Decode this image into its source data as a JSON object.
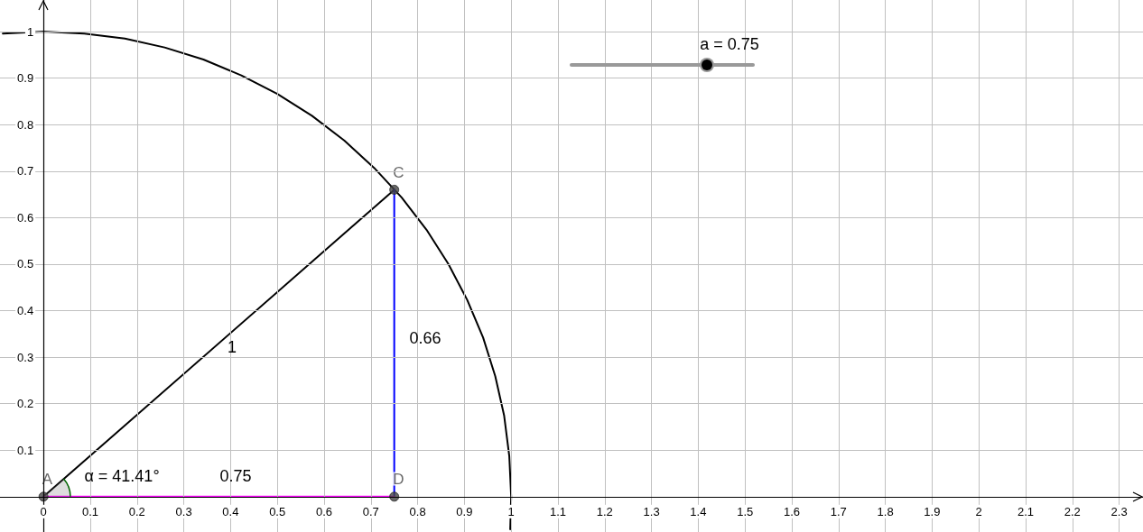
{
  "chart_data": {
    "type": "line",
    "xlim": [
      -0.093,
      2.351
    ],
    "ylim": [
      -0.076,
      1.068
    ],
    "xticks": [
      0,
      0.1,
      0.2,
      0.3,
      0.4,
      0.5,
      0.6,
      0.7,
      0.8,
      0.9,
      1,
      1.1,
      1.2,
      1.3,
      1.4,
      1.5,
      1.6,
      1.7,
      1.8,
      1.9,
      2,
      2.1,
      2.2,
      2.3
    ],
    "yticks": [
      0.1,
      0.2,
      0.3,
      0.4,
      0.5,
      0.6,
      0.7,
      0.8,
      0.9,
      1
    ],
    "grid": true,
    "legend": false,
    "line_style": "solid",
    "series": [
      {
        "color": "#000000",
        "x": [
          0.998,
          1,
          0.996,
          0.985,
          0.966,
          0.94,
          0.906,
          0.866,
          0.819,
          0.766,
          0.707,
          0.643,
          0.574,
          0.5,
          0.423,
          0.342,
          0.259,
          0.174,
          0.087,
          0,
          -0.087
        ],
        "values": [
          -0.07,
          0,
          0.087,
          0.174,
          0.259,
          0.342,
          0.423,
          0.5,
          0.574,
          0.643,
          0.707,
          0.766,
          0.819,
          0.866,
          0.906,
          0.94,
          0.966,
          0.985,
          0.996,
          1,
          0.996
        ]
      },
      {
        "color": "#000000",
        "x": [
          0,
          0.75
        ],
        "values": [
          0,
          0.66
        ]
      },
      {
        "color": "#0000ff",
        "x": [
          0.75,
          0.75
        ],
        "values": [
          0,
          0.66
        ]
      },
      {
        "color": "#ff00ff",
        "x": [
          0,
          0.75
        ],
        "values": [
          0,
          0
        ]
      },
      {
        "type": "scatter",
        "name": "A",
        "color": "#444444",
        "x": [
          0
        ],
        "values": [
          0
        ]
      },
      {
        "type": "scatter",
        "name": "C",
        "color": "#444444",
        "x": [
          0.75
        ],
        "values": [
          0.66
        ]
      },
      {
        "type": "scatter",
        "name": "D",
        "color": "#444444",
        "x": [
          0.75
        ],
        "values": [
          0
        ]
      }
    ],
    "annotations": [
      "1",
      "0.66",
      "0.75",
      "α = 41.41°",
      "a = 0.75"
    ]
  }
}
